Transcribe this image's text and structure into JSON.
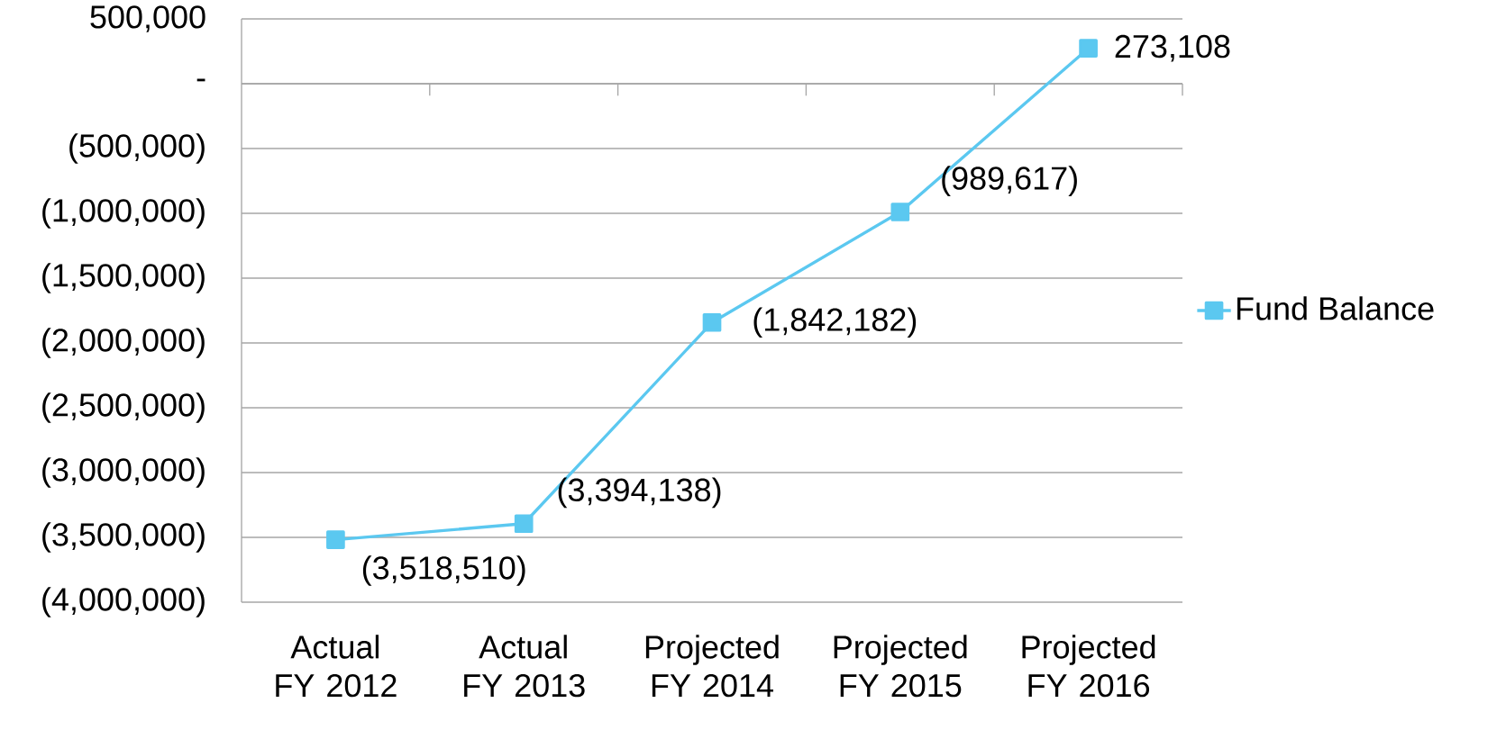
{
  "chart_data": {
    "type": "line",
    "categories": [
      "Actual FY 2012",
      "Actual FY 2013",
      "Projected FY 2014",
      "Projected FY 2015",
      "Projected FY 2016"
    ],
    "series": [
      {
        "name": "Fund Balance",
        "color": "#5bc8f0",
        "values": [
          -3518510,
          -3394138,
          -1842182,
          -989617,
          273108
        ],
        "value_labels": [
          "(3,518,510)",
          "(3,394,138)",
          "(1,842,182)",
          "(989,617)",
          "273,108"
        ]
      }
    ],
    "ylim": [
      -4000000,
      500000
    ],
    "yticks": [
      {
        "value": 500000,
        "label": "500,000"
      },
      {
        "value": 0,
        "label": "-"
      },
      {
        "value": -500000,
        "label": "(500,000)"
      },
      {
        "value": -1000000,
        "label": "(1,000,000)"
      },
      {
        "value": -1500000,
        "label": "(1,500,000)"
      },
      {
        "value": -2000000,
        "label": "(2,000,000)"
      },
      {
        "value": -2500000,
        "label": "(2,500,000)"
      },
      {
        "value": -3000000,
        "label": "(3,000,000)"
      },
      {
        "value": -3500000,
        "label": "(3,500,000)"
      },
      {
        "value": -4000000,
        "label": "(4,000,000)"
      }
    ],
    "grid": "y",
    "legend": "right",
    "marker": "square",
    "line_style": "solid"
  }
}
